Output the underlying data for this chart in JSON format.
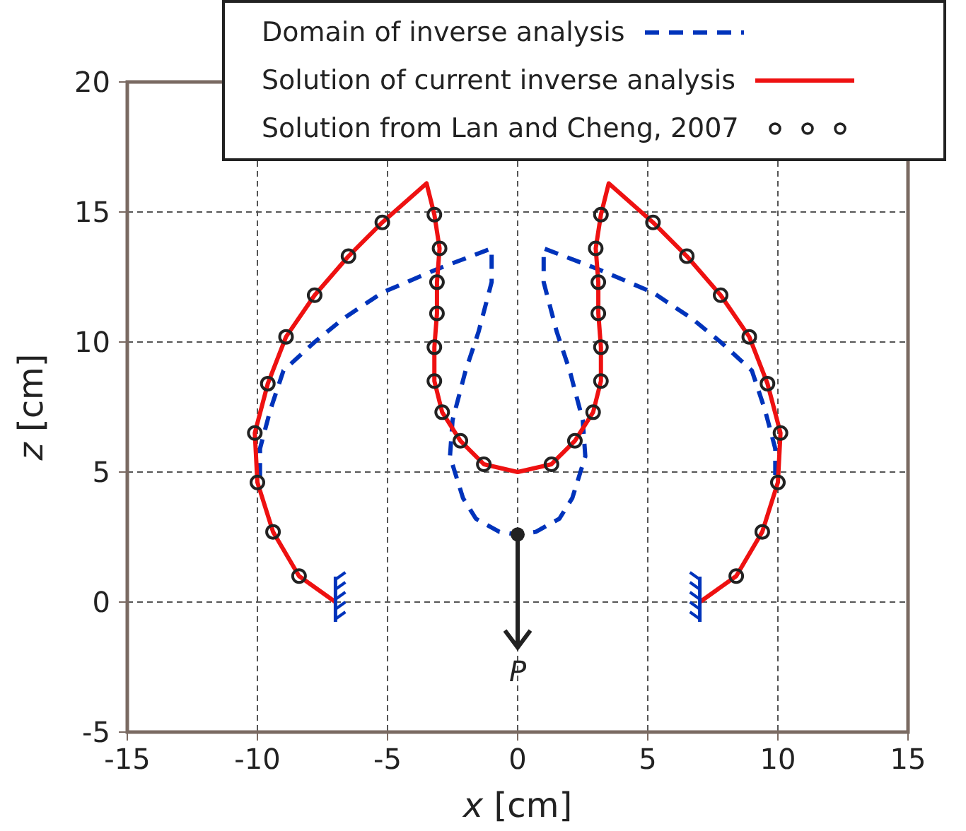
{
  "chart_data": {
    "type": "line",
    "xlabel": "x [cm]",
    "ylabel": "z [cm]",
    "xlim": [
      -15,
      15
    ],
    "ylim": [
      -5,
      20
    ],
    "xticks": [
      -15,
      -10,
      -5,
      0,
      5,
      10,
      15
    ],
    "yticks": [
      -5,
      0,
      5,
      10,
      15,
      20
    ],
    "grid": true,
    "legend": "top right",
    "series": [
      {
        "name": "Domain of inverse analysis",
        "type": "line",
        "line_style": "dashed",
        "color": "#0033bb",
        "x": [
          -9.9,
          -9.9,
          -9.5,
          -9.0,
          -7.8,
          -6.7,
          -5.2,
          -3.1,
          -1.0,
          -1.0,
          -1.5,
          -2.0,
          -2.5,
          -2.6,
          -2.1,
          -1.6,
          -0.7,
          0,
          0.7,
          1.6,
          2.1,
          2.6,
          2.5,
          2.0,
          1.5,
          1.0,
          1.0,
          3.1,
          5.2,
          6.7,
          7.8,
          9.0,
          9.5,
          9.9,
          9.9
        ],
        "values": [
          4.8,
          5.9,
          7.4,
          8.9,
          10.0,
          10.9,
          11.9,
          12.8,
          13.6,
          12.3,
          10.4,
          8.9,
          7.0,
          5.6,
          4.0,
          3.2,
          2.7,
          2.6,
          2.7,
          3.2,
          4.0,
          5.6,
          7.0,
          8.9,
          10.4,
          12.3,
          13.6,
          12.8,
          11.9,
          10.9,
          10.0,
          8.9,
          7.4,
          5.9,
          4.8
        ]
      },
      {
        "name": "Solution of current inverse analysis",
        "type": "line",
        "line_style": "solid",
        "color": "#ee1111",
        "x": [
          -7.0,
          -8.4,
          -9.4,
          -10.0,
          -10.1,
          -9.6,
          -8.9,
          -7.8,
          -6.5,
          -5.2,
          -3.5,
          -3.2,
          -3.0,
          -3.1,
          -3.1,
          -3.2,
          -3.2,
          -2.9,
          -2.2,
          -1.3,
          0,
          1.3,
          2.2,
          2.9,
          3.2,
          3.2,
          3.1,
          3.1,
          3.0,
          3.2,
          3.5,
          5.2,
          6.5,
          7.8,
          8.9,
          9.6,
          10.1,
          10.0,
          9.4,
          8.4,
          7.0
        ],
        "values": [
          0,
          1.0,
          2.7,
          4.6,
          6.5,
          8.4,
          10.2,
          11.8,
          13.3,
          14.6,
          16.1,
          14.9,
          13.6,
          12.3,
          11.1,
          9.8,
          8.5,
          7.3,
          6.2,
          5.3,
          5.0,
          5.3,
          6.2,
          7.3,
          8.5,
          9.8,
          11.1,
          12.3,
          13.6,
          14.9,
          16.1,
          14.6,
          13.3,
          11.8,
          10.2,
          8.4,
          6.5,
          4.6,
          2.7,
          1.0,
          0
        ]
      },
      {
        "name": "Solution from Lan and Cheng, 2007",
        "type": "scatter",
        "marker": "circle",
        "color": "#222222",
        "x": [
          -8.4,
          -9.4,
          -10.0,
          -10.1,
          -9.6,
          -8.9,
          -7.8,
          -6.5,
          -5.2,
          -3.2,
          -3.0,
          -3.1,
          -3.1,
          -3.2,
          -3.2,
          -2.9,
          -2.2,
          -1.3,
          1.3,
          2.2,
          2.9,
          3.2,
          3.2,
          3.1,
          3.1,
          3.0,
          3.2,
          5.2,
          6.5,
          7.8,
          8.9,
          9.6,
          10.1,
          10.0,
          9.4,
          8.4
        ],
        "values": [
          1.0,
          2.7,
          4.6,
          6.5,
          8.4,
          10.2,
          11.8,
          13.3,
          14.6,
          14.9,
          13.6,
          12.3,
          11.1,
          9.8,
          8.5,
          7.3,
          6.2,
          5.3,
          5.3,
          6.2,
          7.3,
          8.5,
          9.8,
          11.1,
          12.3,
          13.6,
          14.9,
          14.6,
          13.3,
          11.8,
          10.2,
          8.4,
          6.5,
          4.6,
          2.7,
          1.0
        ]
      }
    ],
    "annotations": [
      {
        "text": "P",
        "x": 0,
        "y": 2.6
      }
    ]
  }
}
